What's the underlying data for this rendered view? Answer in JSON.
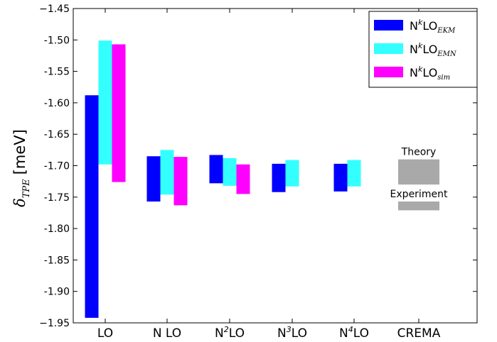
{
  "chart_data": {
    "type": "bar",
    "title": "",
    "xlabel": "",
    "ylabel": {
      "base": "δ",
      "sub": "TPE",
      "unit": "[meV]"
    },
    "ylim": [
      -1.95,
      -1.45
    ],
    "yticks": [
      -1.45,
      -1.5,
      -1.55,
      -1.6,
      -1.65,
      -1.7,
      -1.75,
      -1.8,
      -1.85,
      -1.9,
      -1.95
    ],
    "ytick_labels": [
      "−1.45",
      "-1.50",
      "-1.55",
      "-1.60",
      "-1.65",
      "-1.70",
      "-1.75",
      "-1.80",
      "-1.85",
      "-1.90",
      "−1.95"
    ],
    "categories": [
      {
        "base": "LO",
        "sup": ""
      },
      {
        "base": "N LO",
        "sup": ""
      },
      {
        "base": "N",
        "sup": "2",
        "tail": "LO"
      },
      {
        "base": "N",
        "sup": "3",
        "tail": "LO"
      },
      {
        "base": "N",
        "sup": "4",
        "tail": "LO"
      },
      {
        "base": "CREMA",
        "sup": ""
      }
    ],
    "series": [
      {
        "name": "EKM",
        "legend": {
          "base": "N",
          "sup": "k",
          "mid": "LO",
          "sub": "EKM"
        },
        "color": "#0000ff",
        "ranges": [
          [
            -1.942,
            -1.588
          ],
          [
            -1.757,
            -1.685
          ],
          [
            -1.728,
            -1.683
          ],
          [
            -1.742,
            -1.697
          ],
          [
            -1.741,
            -1.697
          ]
        ]
      },
      {
        "name": "EMN",
        "legend": {
          "base": "N",
          "sup": "k",
          "mid": "LO",
          "sub": "EMN"
        },
        "color": "#33ffff",
        "ranges": [
          [
            -1.698,
            -1.501
          ],
          [
            -1.746,
            -1.675
          ],
          [
            -1.732,
            -1.688
          ],
          [
            -1.733,
            -1.691
          ],
          [
            -1.733,
            -1.691
          ]
        ]
      },
      {
        "name": "sim",
        "legend": {
          "base": "N",
          "sup": "k",
          "mid": "LO",
          "sub": "sim"
        },
        "color": "#ff00ff",
        "ranges": [
          [
            -1.726,
            -1.507
          ],
          [
            -1.763,
            -1.686
          ],
          [
            -1.745,
            -1.698
          ]
        ]
      }
    ],
    "crema": {
      "color": "#a9a9a9",
      "theory": {
        "label": "Theory",
        "range": [
          -1.73,
          -1.69
        ]
      },
      "experiment": {
        "label": "Experiment",
        "range": [
          -1.771,
          -1.757
        ]
      }
    },
    "legend_position": "top-right",
    "grid": false
  }
}
